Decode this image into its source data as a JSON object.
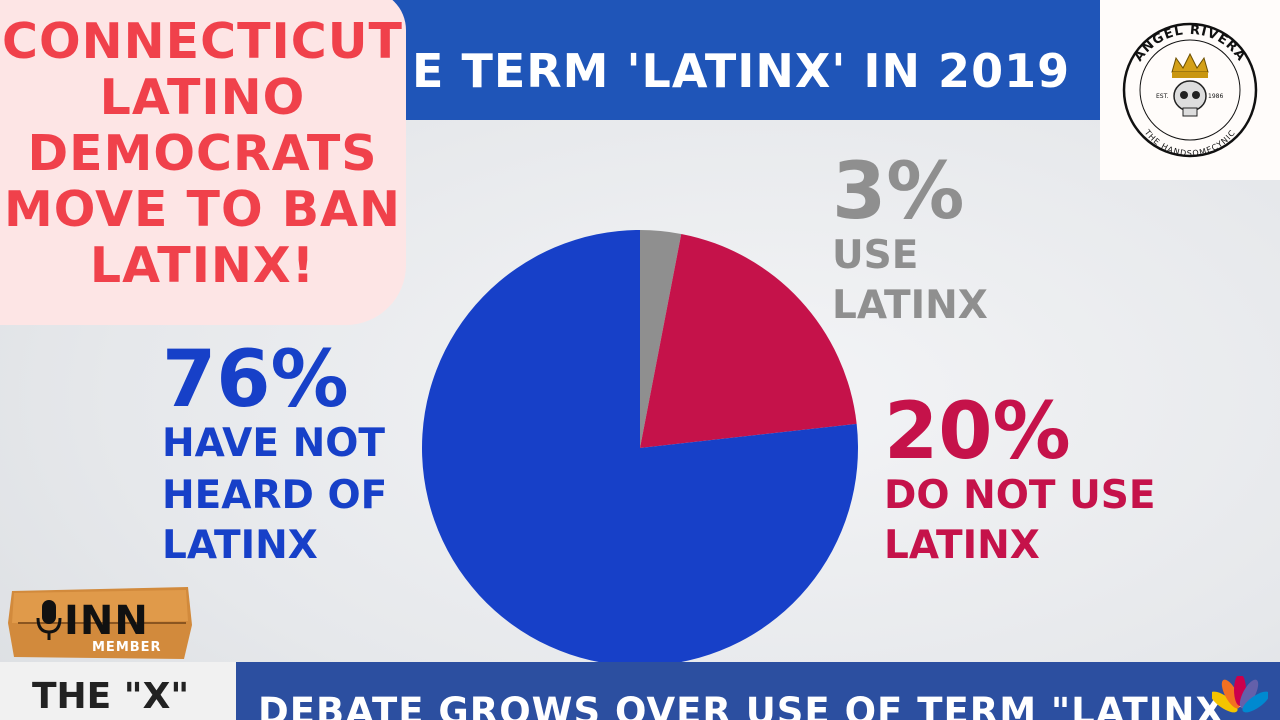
{
  "chart_data": {
    "type": "pie",
    "title": "E TERM 'LATINX' IN 2019",
    "slices": [
      {
        "label": "HAVE NOT HEARD OF LATINX",
        "value": 76,
        "display": "76%",
        "color": "#1740c8"
      },
      {
        "label": "DO NOT USE LATINX",
        "value": 20,
        "display": "20%",
        "color": "#c5124a"
      },
      {
        "label": "USE LATINX",
        "value": 3,
        "display": "3%",
        "color": "#8f8f8f"
      }
    ]
  },
  "labels": {
    "heard_not_pct": "76%",
    "heard_not_lines": [
      "HAVE NOT",
      "HEARD OF",
      "LATINX"
    ],
    "do_not_use_pct": "20%",
    "do_not_use_lines": [
      "DO NOT USE",
      "LATINX"
    ],
    "use_pct": "3%",
    "use_lines": [
      "USE",
      "LATINX"
    ]
  },
  "headline": {
    "lines": [
      "CONNECTICUT",
      "LATINO",
      "DEMOCRATS",
      "MOVE TO BAN",
      "LATINX!"
    ],
    "color": "#f0414b"
  },
  "logo": {
    "name": "ANGEL RIVERA",
    "est": "EST.",
    "year": "1986",
    "tagline": "THE HANDSOMECYNIC"
  },
  "badge": {
    "title": "INN",
    "subtitle": "MEMBER"
  },
  "lower_third": {
    "left_text": "THE \"X\"",
    "headline": "DEBATE GROWS OVER USE OF TERM \"LATINX\""
  },
  "colors": {
    "title_bar": "#1f55b8",
    "lower_bar": "#2c4fa0"
  }
}
